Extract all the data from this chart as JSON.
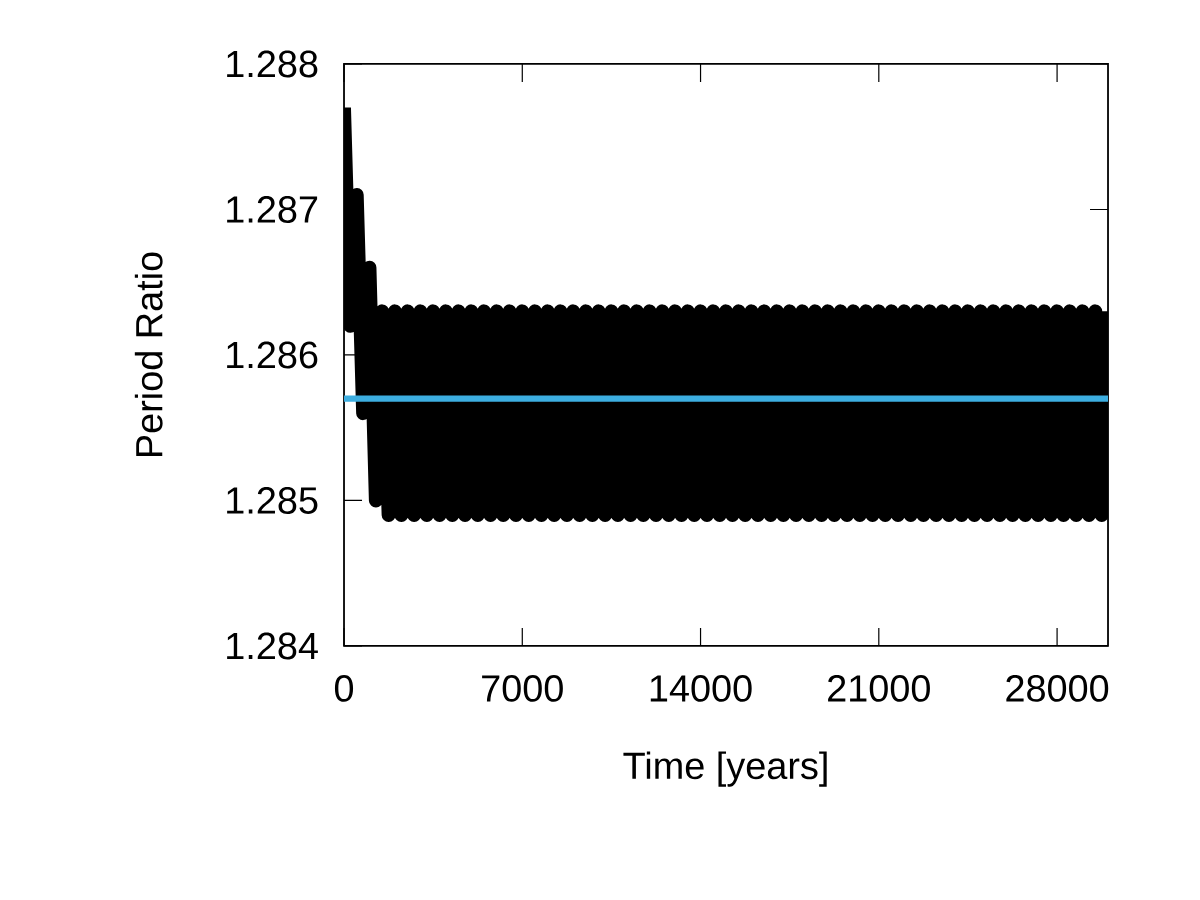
{
  "chart_data": {
    "type": "line",
    "xlabel": "Time [years]",
    "ylabel": "Period Ratio",
    "xlim": [
      0,
      30000
    ],
    "ylim": [
      1.284,
      1.288
    ],
    "xticks": [
      0,
      7000,
      14000,
      21000,
      28000
    ],
    "yticks": [
      1.284,
      1.285,
      1.286,
      1.287,
      1.288
    ],
    "grid": false,
    "x": [
      0,
      250,
      500,
      750,
      1000,
      1250,
      1500,
      1750,
      2000,
      2250,
      2500,
      2750,
      3000,
      3250,
      3500,
      3750,
      4000,
      4250,
      4500,
      4750,
      5000,
      5250,
      5500,
      5750,
      6000,
      6250,
      6500,
      6750,
      7000,
      7250,
      7500,
      7750,
      8000,
      8250,
      8500,
      8750,
      9000,
      9250,
      9500,
      9750,
      10000,
      10250,
      10500,
      10750,
      11000,
      11250,
      11500,
      11750,
      12000,
      12250,
      12500,
      12750,
      13000,
      13250,
      13500,
      13750,
      14000,
      14250,
      14500,
      14750,
      15000,
      15250,
      15500,
      15750,
      16000,
      16250,
      16500,
      16750,
      17000,
      17250,
      17500,
      17750,
      18000,
      18250,
      18500,
      18750,
      19000,
      19250,
      19500,
      19750,
      20000,
      20250,
      20500,
      20750,
      21000,
      21250,
      21500,
      21750,
      22000,
      22250,
      22500,
      22750,
      23000,
      23250,
      23500,
      23750,
      24000,
      24250,
      24500,
      24750,
      25000,
      25250,
      25500,
      25750,
      26000,
      26250,
      26500,
      26750,
      27000,
      27250,
      27500,
      27750,
      28000,
      28250,
      28500,
      28750,
      29000,
      29250,
      29500,
      29750,
      30000
    ],
    "series": [
      {
        "color": "#000000",
        "values": [
          1.2877,
          1.2862,
          1.2871,
          1.2856,
          1.2866,
          1.285,
          1.2863,
          1.2849,
          1.2863,
          1.2849,
          1.2863,
          1.2849,
          1.2863,
          1.2849,
          1.2863,
          1.2849,
          1.2863,
          1.2849,
          1.2863,
          1.2849,
          1.2863,
          1.2849,
          1.2863,
          1.2849,
          1.2863,
          1.2849,
          1.2863,
          1.2849,
          1.2863,
          1.2849,
          1.2863,
          1.2849,
          1.2863,
          1.2849,
          1.2863,
          1.2849,
          1.2863,
          1.2849,
          1.2863,
          1.2849,
          1.2863,
          1.2849,
          1.2863,
          1.2849,
          1.2863,
          1.2849,
          1.2863,
          1.2849,
          1.2863,
          1.2849,
          1.2863,
          1.2849,
          1.2863,
          1.2849,
          1.2863,
          1.2849,
          1.2863,
          1.2849,
          1.2863,
          1.2849,
          1.2863,
          1.2849,
          1.2863,
          1.2849,
          1.2863,
          1.2849,
          1.2863,
          1.2849,
          1.2863,
          1.2849,
          1.2863,
          1.2849,
          1.2863,
          1.2849,
          1.2863,
          1.2849,
          1.2863,
          1.2849,
          1.2863,
          1.2849,
          1.2863,
          1.2849,
          1.2863,
          1.2849,
          1.2863,
          1.2849,
          1.2863,
          1.2849,
          1.2863,
          1.2849,
          1.2863,
          1.2849,
          1.2863,
          1.2849,
          1.2863,
          1.2849,
          1.2863,
          1.2849,
          1.2863,
          1.2849,
          1.2863,
          1.2849,
          1.2863,
          1.2849,
          1.2863,
          1.2849,
          1.2863,
          1.2849,
          1.2863,
          1.2849,
          1.2863,
          1.2849,
          1.2863,
          1.2849,
          1.2863,
          1.2849,
          1.2863,
          1.2849,
          1.2863,
          1.2849,
          1.2863
        ]
      },
      {
        "color": "#3daee0",
        "x": [
          0,
          30000
        ],
        "values": [
          1.2857,
          1.2857
        ]
      }
    ]
  }
}
